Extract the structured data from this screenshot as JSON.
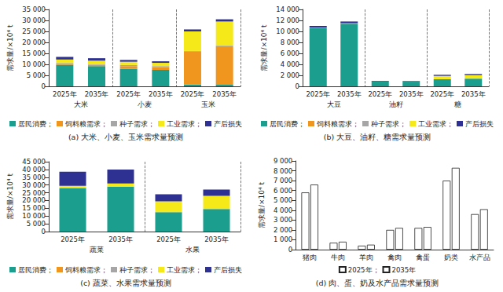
{
  "chart_data": [
    {
      "type": "bar",
      "title": "(a) 大米、小麦、玉米需求量预测",
      "y_label": "需求量/×10⁴ t",
      "categories": [
        "2025年",
        "2035年",
        "2025年",
        "2035年",
        "2025年",
        "2035年"
      ],
      "groups": [
        "大米",
        "小麦",
        "玉米"
      ],
      "series": [
        {
          "name": "居民消费；",
          "color": "#1b9e8e",
          "values": [
            9800,
            9200,
            8000,
            7500,
            800,
            700
          ]
        },
        {
          "name": "饲料粮需求；",
          "color": "#f0961e",
          "values": [
            600,
            600,
            1200,
            1200,
            15000,
            17500
          ]
        },
        {
          "name": "种子需求；",
          "color": "#a6a6a6",
          "values": [
            200,
            200,
            500,
            500,
            300,
            300
          ]
        },
        {
          "name": "工业需求；",
          "color": "#f5e91a",
          "values": [
            1600,
            1700,
            1500,
            1500,
            8900,
            11000
          ]
        },
        {
          "name": "产后损失",
          "color": "#2e3192",
          "values": [
            1200,
            1100,
            800,
            700,
            900,
            1000
          ]
        }
      ],
      "ylim": [
        0,
        35000
      ],
      "yticks": [
        0,
        {
          "value": 5000,
          "label": "5 000"
        },
        {
          "value": 10000,
          "label": "10 000"
        },
        {
          "value": 15000,
          "label": "15 000"
        },
        {
          "value": 20000,
          "label": "20 000"
        },
        {
          "value": 25000,
          "label": "25 000"
        },
        {
          "value": 30000,
          "label": "30 000"
        },
        {
          "value": 35000,
          "label": "35 000"
        }
      ],
      "stacked": true,
      "grid": false,
      "legend": "bottom"
    },
    {
      "type": "bar",
      "title": "(b) 大豆、油籽、糖需求量预测",
      "y_label": "需求量/×10⁴ t",
      "categories": [
        "2025年",
        "2035年",
        "2025年",
        "2035年",
        "2025年",
        "2035年"
      ],
      "groups": [
        "大豆",
        "油籽",
        "糖"
      ],
      "series": [
        {
          "name": "居民消费；",
          "color": "#1b9e8e",
          "values": [
            10600,
            11400,
            900,
            850,
            1300,
            1400
          ]
        },
        {
          "name": "饲料粮需求；",
          "color": "#f0961e",
          "values": [
            0,
            0,
            0,
            0,
            0,
            0
          ]
        },
        {
          "name": "种子需求；",
          "color": "#a6a6a6",
          "values": [
            100,
            100,
            0,
            0,
            0,
            0
          ]
        },
        {
          "name": "工业需求；",
          "color": "#f5e91a",
          "values": [
            0,
            0,
            0,
            0,
            600,
            650
          ]
        },
        {
          "name": "产后损失",
          "color": "#2e3192",
          "values": [
            300,
            300,
            100,
            100,
            200,
            200
          ]
        }
      ],
      "ylim": [
        0,
        14000
      ],
      "yticks": [
        0,
        {
          "value": 2000,
          "label": "2 000"
        },
        {
          "value": 4000,
          "label": "4 000"
        },
        {
          "value": 6000,
          "label": "6 000"
        },
        {
          "value": 8000,
          "label": "8 000"
        },
        {
          "value": 10000,
          "label": "10 000"
        },
        {
          "value": 12000,
          "label": "12 000"
        },
        {
          "value": 14000,
          "label": "14 000"
        }
      ],
      "stacked": true,
      "grid": false,
      "legend": "bottom"
    },
    {
      "type": "bar",
      "title": "(c) 蔬菜、水果需求量预测",
      "y_label": "需求量/×10⁴ t",
      "categories": [
        "2025年",
        "2035年",
        "2025年",
        "2035年"
      ],
      "groups": [
        "蔬菜",
        "水果"
      ],
      "series": [
        {
          "name": "居民消费；",
          "color": "#1b9e8e",
          "values": [
            28000,
            29000,
            12500,
            14500
          ]
        },
        {
          "name": "饲料粮需求；",
          "color": "#f0961e",
          "values": [
            0,
            0,
            0,
            0
          ]
        },
        {
          "name": "种子需求；",
          "color": "#a6a6a6",
          "values": [
            0,
            0,
            0,
            0
          ]
        },
        {
          "name": "工业需求；",
          "color": "#f5e91a",
          "values": [
            1500,
            2000,
            7000,
            8500
          ]
        },
        {
          "name": "产后损失",
          "color": "#2e3192",
          "values": [
            9000,
            9000,
            4500,
            4000
          ]
        }
      ],
      "ylim": [
        0,
        45000
      ],
      "yticks": [
        0,
        {
          "value": 5000,
          "label": "5 000"
        },
        {
          "value": 10000,
          "label": "10 000"
        },
        {
          "value": 15000,
          "label": "15 000"
        },
        {
          "value": 20000,
          "label": "20 000"
        },
        {
          "value": 25000,
          "label": "25 000"
        },
        {
          "value": 30000,
          "label": "30 000"
        },
        {
          "value": 35000,
          "label": "35 000"
        },
        {
          "value": 40000,
          "label": "40 000"
        },
        {
          "value": 45000,
          "label": "45 000"
        }
      ],
      "stacked": true,
      "grid": false,
      "legend": "bottom"
    },
    {
      "type": "bar",
      "title": "(d) 肉、蛋、奶及水产品需求量预测",
      "y_label": "需求量/×10⁴ t",
      "categories": [
        "猪肉",
        "牛肉",
        "羊肉",
        "禽肉",
        "禽蛋",
        "奶类",
        "水产品"
      ],
      "series": [
        {
          "name": "2025年；",
          "color": "#ffffff",
          "values": [
            5800,
            700,
            400,
            2000,
            2200,
            7000,
            3600
          ]
        },
        {
          "name": "2035年",
          "color": "#ffffff",
          "values": [
            6600,
            800,
            500,
            2200,
            2300,
            8300,
            4100
          ]
        }
      ],
      "ylim": [
        0,
        9000
      ],
      "yticks": [
        0,
        {
          "value": 1000,
          "label": "1 000"
        },
        {
          "value": 2000,
          "label": "2 000"
        },
        {
          "value": 3000,
          "label": "3 000"
        },
        {
          "value": 4000,
          "label": "4 000"
        },
        {
          "value": 5000,
          "label": "5 000"
        },
        {
          "value": 6000,
          "label": "6 000"
        },
        {
          "value": 7000,
          "label": "7 000"
        },
        {
          "value": 8000,
          "label": "8 000"
        },
        {
          "value": 9000,
          "label": "9 000"
        }
      ],
      "stacked": false,
      "grid": false,
      "legend": "bottom"
    }
  ]
}
